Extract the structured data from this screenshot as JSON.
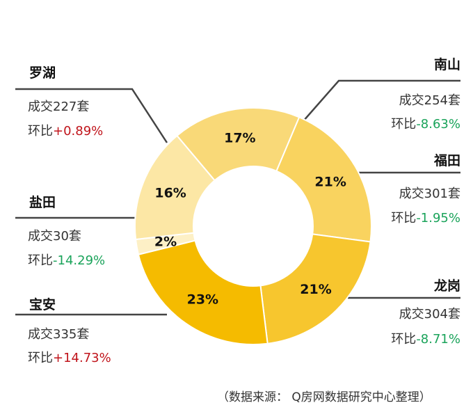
{
  "chart_data": {
    "type": "pie",
    "style": "donut",
    "slices": [
      {
        "district": "南山",
        "percent_label": "17%",
        "value": 254,
        "deals_text": "成交254套",
        "mom_prefix": "环比",
        "mom_value": "-8.63%",
        "mom_color": "#1aa35a",
        "color": "#f9d978"
      },
      {
        "district": "福田",
        "percent_label": "21%",
        "value": 301,
        "deals_text": "成交301套",
        "mom_prefix": "环比",
        "mom_value": "-1.95%",
        "mom_color": "#1aa35a",
        "color": "#f9d35f"
      },
      {
        "district": "龙岗",
        "percent_label": "21%",
        "value": 304,
        "deals_text": "成交304套",
        "mom_prefix": "环比",
        "mom_value": "-8.71%",
        "mom_color": "#1aa35a",
        "color": "#f7c62e"
      },
      {
        "district": "宝安",
        "percent_label": "23%",
        "value": 335,
        "deals_text": "成交335套",
        "mom_prefix": "环比",
        "mom_value": "+14.73%",
        "mom_color": "#c0141b",
        "color": "#f5bb00"
      },
      {
        "district": "盐田",
        "percent_label": "2%",
        "value": 30,
        "deals_text": "成交30套",
        "mom_prefix": "环比",
        "mom_value": "-14.29%",
        "mom_color": "#1aa35a",
        "color": "#fdf0c6"
      },
      {
        "district": "罗湖",
        "percent_label": "16%",
        "value": 227,
        "deals_text": "成交227套",
        "mom_prefix": "环比",
        "mom_value": "+0.89%",
        "mom_color": "#c0141b",
        "color": "#fce7a5"
      }
    ]
  },
  "footer": {
    "source": "（数据来源： Q房网数据研究中心整理）"
  }
}
